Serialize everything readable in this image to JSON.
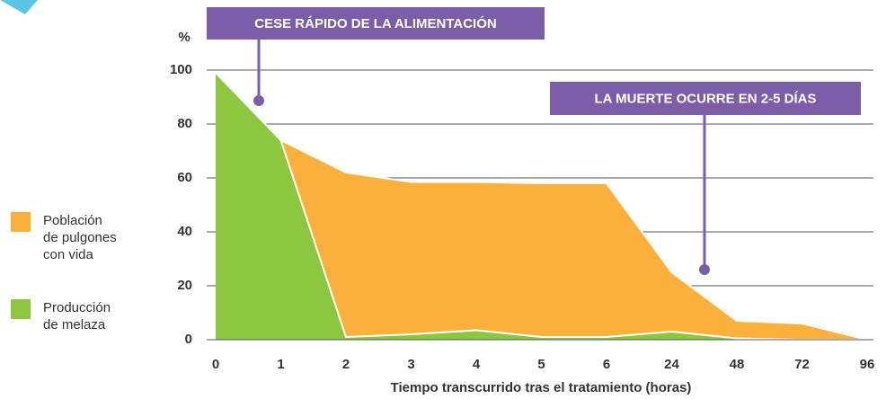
{
  "chart_data": {
    "type": "area",
    "ylabel": "%",
    "xlabel": "Tiempo transcurrido tras el tratamiento (horas)",
    "categories": [
      0,
      1,
      2,
      3,
      4,
      5,
      6,
      24,
      48,
      72,
      96
    ],
    "series": [
      {
        "name": "Población de pulgones con vida",
        "color": "#fbb03b",
        "values": [
          null,
          74,
          62,
          58.5,
          58.5,
          58,
          58,
          25,
          7,
          6,
          0
        ]
      },
      {
        "name": "Producción de melaza",
        "color": "#8dc63f",
        "values": [
          99,
          74,
          1,
          2,
          3.5,
          1,
          1,
          3,
          0.5,
          0,
          0
        ]
      }
    ],
    "ylim": [
      0,
      100
    ],
    "yticks": [
      0,
      20,
      40,
      60,
      80,
      100
    ],
    "grid": true,
    "annotations": [
      {
        "text": "CESE RÁPIDO DE LA ALIMENTACIÓN"
      },
      {
        "text": "LA MUERTE OCURRE EN 2-5 DÍAS"
      }
    ]
  }
}
